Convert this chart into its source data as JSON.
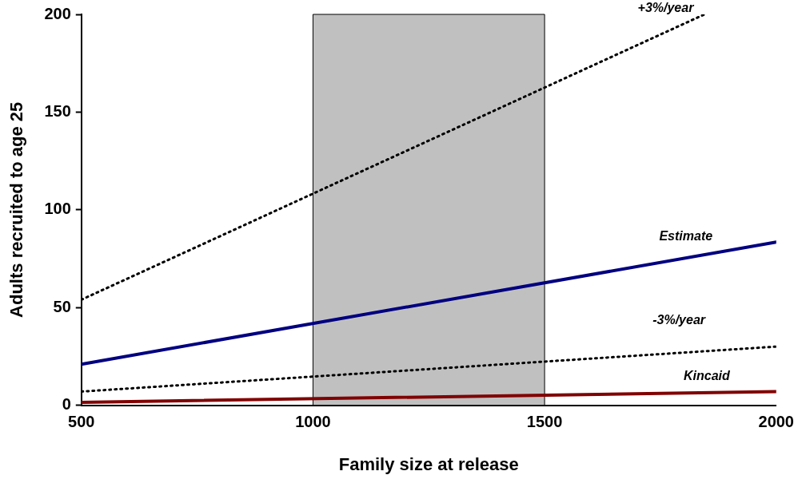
{
  "chart_data": {
    "type": "line",
    "xlabel": "Family size at release",
    "ylabel": "Adults recruited to age 25",
    "xlim": [
      500,
      2000
    ],
    "xticks": [
      500,
      1000,
      1500,
      2000
    ],
    "ylim": [
      0,
      200
    ],
    "yticks": [
      0,
      50,
      100,
      150,
      200
    ],
    "grid": false,
    "legend": false,
    "marker": "none",
    "bands": [
      {
        "axis": "x",
        "from": 1000,
        "to": 1500,
        "color": "#c0c0c0"
      }
    ],
    "series": [
      {
        "name": "+3%/year",
        "x": [
          500,
          1845
        ],
        "values": [
          54,
          200
        ],
        "color": "#000000",
        "line_style": "dotted"
      },
      {
        "name": "Estimate",
        "x": [
          500,
          2000
        ],
        "values": [
          21,
          83.5
        ],
        "color": "#000080",
        "line_style": "solid"
      },
      {
        "name": "-3%/year",
        "x": [
          500,
          2000
        ],
        "values": [
          7,
          30
        ],
        "color": "#000000",
        "line_style": "dotted"
      },
      {
        "name": "Kincaid",
        "x": [
          500,
          2000
        ],
        "values": [
          1.5,
          7
        ],
        "color": "#800000",
        "line_style": "solid"
      }
    ]
  }
}
